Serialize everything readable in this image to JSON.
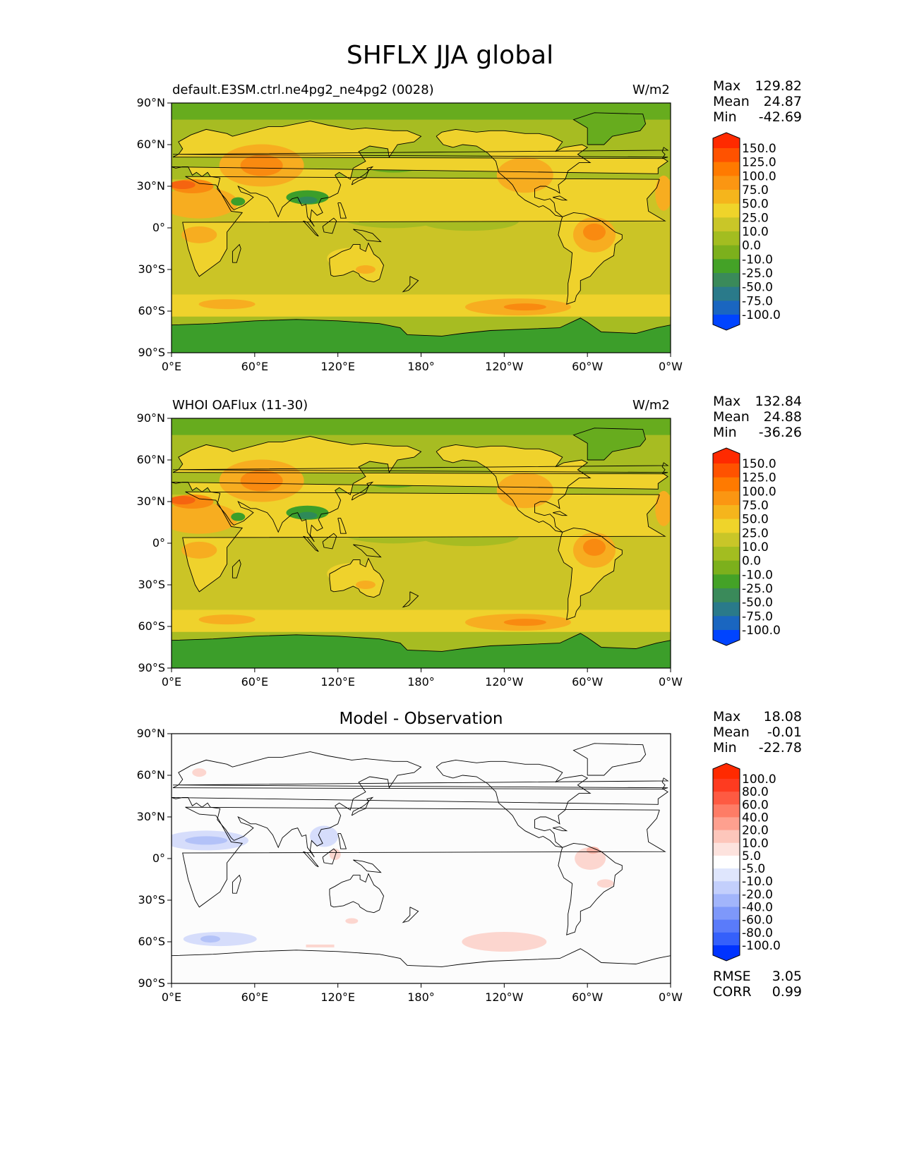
{
  "title": "SHFLX JJA global",
  "axes": {
    "lat_ticks": [
      "90°N",
      "60°N",
      "30°N",
      "0°",
      "30°S",
      "60°S",
      "90°S"
    ],
    "lon_ticks": [
      "0°E",
      "60°E",
      "120°E",
      "180°",
      "120°W",
      "60°W",
      "0°W"
    ]
  },
  "panels": [
    {
      "id": "model",
      "left_label": "default.E3SM.ctrl.ne4pg2_ne4pg2 (0028)",
      "units": "W/m2",
      "stats": {
        "max_label": "Max",
        "max": "129.82",
        "mean_label": "Mean",
        "mean": "24.87",
        "min_label": "Min",
        "min": "-42.69"
      },
      "colorbar": {
        "labels": [
          "150.0",
          "125.0",
          "100.0",
          "75.0",
          "50.0",
          "25.0",
          "10.0",
          "0.0",
          "-10.0",
          "-25.0",
          "-50.0",
          "-75.0",
          "-100.0"
        ],
        "colors": [
          "#ff2a00",
          "#ff5200",
          "#ff7a00",
          "#fb9612",
          "#f5b51c",
          "#efd42a",
          "#c9c628",
          "#a3bd20",
          "#7cb01c",
          "#44a227",
          "#3a8a5a",
          "#2a7a8a",
          "#1a66c0",
          "#0044ff"
        ]
      }
    },
    {
      "id": "obs",
      "left_label": "WHOI OAFlux (11-30)",
      "units": "W/m2",
      "stats": {
        "max_label": "Max",
        "max": "132.84",
        "mean_label": "Mean",
        "mean": "24.88",
        "min_label": "Min",
        "min": "-36.26"
      },
      "colorbar": {
        "labels": [
          "150.0",
          "125.0",
          "100.0",
          "75.0",
          "50.0",
          "25.0",
          "10.0",
          "0.0",
          "-10.0",
          "-25.0",
          "-50.0",
          "-75.0",
          "-100.0"
        ],
        "colors": [
          "#ff2a00",
          "#ff5200",
          "#ff7a00",
          "#fb9612",
          "#f5b51c",
          "#efd42a",
          "#c9c628",
          "#a3bd20",
          "#7cb01c",
          "#44a227",
          "#3a8a5a",
          "#2a7a8a",
          "#1a66c0",
          "#0044ff"
        ]
      }
    },
    {
      "id": "diff",
      "center_title": "Model - Observation",
      "stats": {
        "max_label": "Max",
        "max": "18.08",
        "mean_label": "Mean",
        "mean": "-0.01",
        "min_label": "Min",
        "min": "-22.78"
      },
      "metrics": {
        "rmse_label": "RMSE",
        "rmse": "3.05",
        "corr_label": "CORR",
        "corr": "0.99"
      },
      "colorbar": {
        "labels": [
          "100.0",
          "80.0",
          "60.0",
          "40.0",
          "20.0",
          "10.0",
          "5.0",
          "-5.0",
          "-10.0",
          "-20.0",
          "-40.0",
          "-60.0",
          "-80.0",
          "-100.0"
        ],
        "colors": [
          "#ff2a00",
          "#fe3b20",
          "#fe5a42",
          "#fe7c66",
          "#fea08f",
          "#fdc6bb",
          "#fde3de",
          "#ffffff",
          "#dfe6fd",
          "#c3cffc",
          "#a2b5fb",
          "#7e98fa",
          "#5a7bfa",
          "#3560fb",
          "#0033ff"
        ]
      }
    }
  ],
  "map_colors": {
    "ice": "#3c9e2a",
    "polar": "#67ac1e",
    "ocean_base": "#a7bc22",
    "ocean_mid": "#cbc426",
    "land_warm": "#efd22c",
    "land_hot": "#f7ad20",
    "land_very_hot": "#f98a10",
    "land_extreme": "#f56410",
    "cool": "#2e8a58",
    "diff_base": "#fcfcfc",
    "diff_pos": "#fcd6cf",
    "diff_pos_strong": "#f9b3a6",
    "diff_neg": "#d6ddfb",
    "diff_neg_strong": "#b3c2f8",
    "coast": "#000000"
  }
}
